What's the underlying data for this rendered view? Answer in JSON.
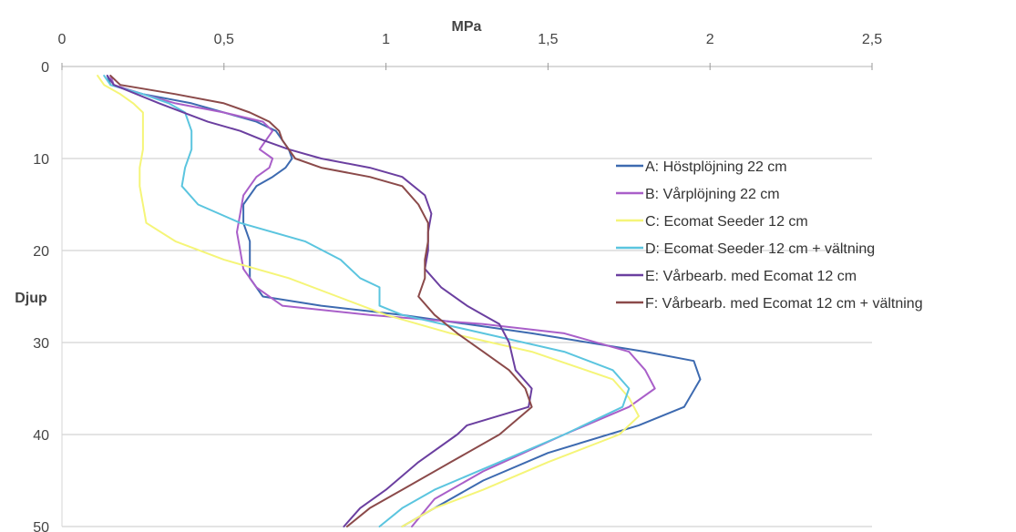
{
  "chart_data": {
    "type": "line",
    "orientation": "x-value-vs-depth (y axis inverted, x axis on top)",
    "xlabel": "MPa",
    "ylabel": "Djup",
    "xlim": [
      0,
      2.5
    ],
    "ylim": [
      0,
      50
    ],
    "x_ticks": [
      "0",
      "0,5",
      "1",
      "1,5",
      "2",
      "2,5"
    ],
    "y_ticks": [
      "0",
      "10",
      "20",
      "30",
      "40",
      "50"
    ],
    "grid": "horizontal",
    "legend_position": "right",
    "series": [
      {
        "name": "A: Höstplöjning 22 cm",
        "color": "#3d6ab0",
        "points": [
          [
            0.14,
            1
          ],
          [
            0.15,
            2
          ],
          [
            0.25,
            3
          ],
          [
            0.4,
            4
          ],
          [
            0.5,
            5
          ],
          [
            0.6,
            6
          ],
          [
            0.66,
            7
          ],
          [
            0.68,
            8
          ],
          [
            0.7,
            9
          ],
          [
            0.71,
            10
          ],
          [
            0.69,
            11
          ],
          [
            0.65,
            12
          ],
          [
            0.6,
            13
          ],
          [
            0.56,
            15
          ],
          [
            0.56,
            17
          ],
          [
            0.58,
            19
          ],
          [
            0.58,
            21
          ],
          [
            0.58,
            23
          ],
          [
            0.62,
            25
          ],
          [
            0.8,
            26
          ],
          [
            1.05,
            27
          ],
          [
            1.45,
            29
          ],
          [
            1.8,
            31
          ],
          [
            1.95,
            32
          ],
          [
            1.97,
            34
          ],
          [
            1.92,
            37
          ],
          [
            1.78,
            39
          ],
          [
            1.5,
            42
          ],
          [
            1.3,
            45
          ],
          [
            1.15,
            48
          ],
          [
            1.05,
            50
          ]
        ]
      },
      {
        "name": "B: Vårplöjning 22 cm",
        "color": "#a95fc9",
        "points": [
          [
            0.15,
            1
          ],
          [
            0.16,
            2
          ],
          [
            0.25,
            3
          ],
          [
            0.35,
            4
          ],
          [
            0.5,
            5
          ],
          [
            0.62,
            6
          ],
          [
            0.65,
            7
          ],
          [
            0.63,
            8
          ],
          [
            0.61,
            9
          ],
          [
            0.65,
            10
          ],
          [
            0.64,
            11
          ],
          [
            0.6,
            12
          ],
          [
            0.58,
            13
          ],
          [
            0.56,
            14
          ],
          [
            0.55,
            16
          ],
          [
            0.54,
            18
          ],
          [
            0.55,
            20
          ],
          [
            0.56,
            22
          ],
          [
            0.6,
            24
          ],
          [
            0.68,
            26
          ],
          [
            0.95,
            27
          ],
          [
            1.3,
            28
          ],
          [
            1.55,
            29
          ],
          [
            1.75,
            31
          ],
          [
            1.8,
            33
          ],
          [
            1.83,
            35
          ],
          [
            1.75,
            37
          ],
          [
            1.55,
            40
          ],
          [
            1.3,
            44
          ],
          [
            1.15,
            47
          ],
          [
            1.08,
            50
          ]
        ]
      },
      {
        "name": "C: Ecomat Seeder 12 cm",
        "color": "#f5f578",
        "points": [
          [
            0.11,
            1
          ],
          [
            0.13,
            2
          ],
          [
            0.18,
            3
          ],
          [
            0.22,
            4
          ],
          [
            0.25,
            5
          ],
          [
            0.25,
            7
          ],
          [
            0.25,
            9
          ],
          [
            0.24,
            11
          ],
          [
            0.24,
            13
          ],
          [
            0.25,
            15
          ],
          [
            0.26,
            17
          ],
          [
            0.35,
            19
          ],
          [
            0.5,
            21
          ],
          [
            0.7,
            23
          ],
          [
            0.85,
            25
          ],
          [
            1.0,
            27
          ],
          [
            1.2,
            29
          ],
          [
            1.45,
            31
          ],
          [
            1.7,
            34
          ],
          [
            1.75,
            36
          ],
          [
            1.78,
            38
          ],
          [
            1.72,
            40
          ],
          [
            1.5,
            43
          ],
          [
            1.3,
            46
          ],
          [
            1.15,
            48
          ],
          [
            1.05,
            50
          ]
        ]
      },
      {
        "name": "D: Ecomat Seeder 12 cm + vältning",
        "color": "#5bc5df",
        "points": [
          [
            0.13,
            1
          ],
          [
            0.15,
            2
          ],
          [
            0.25,
            3
          ],
          [
            0.33,
            4
          ],
          [
            0.38,
            5
          ],
          [
            0.4,
            7
          ],
          [
            0.4,
            9
          ],
          [
            0.38,
            11
          ],
          [
            0.37,
            13
          ],
          [
            0.42,
            15
          ],
          [
            0.55,
            17
          ],
          [
            0.75,
            19
          ],
          [
            0.86,
            21
          ],
          [
            0.92,
            23
          ],
          [
            0.98,
            24
          ],
          [
            0.98,
            26
          ],
          [
            1.05,
            27
          ],
          [
            1.3,
            29
          ],
          [
            1.55,
            31
          ],
          [
            1.7,
            33
          ],
          [
            1.75,
            35
          ],
          [
            1.73,
            37
          ],
          [
            1.55,
            40
          ],
          [
            1.35,
            43
          ],
          [
            1.15,
            46
          ],
          [
            1.05,
            48
          ],
          [
            0.98,
            50
          ]
        ]
      },
      {
        "name": "E: Vårbearb. med Ecomat 12 cm",
        "color": "#6b3fa0",
        "points": [
          [
            0.14,
            1
          ],
          [
            0.16,
            2
          ],
          [
            0.3,
            4
          ],
          [
            0.45,
            6
          ],
          [
            0.55,
            7
          ],
          [
            0.62,
            8
          ],
          [
            0.7,
            9
          ],
          [
            0.8,
            10
          ],
          [
            0.95,
            11
          ],
          [
            1.05,
            12
          ],
          [
            1.12,
            14
          ],
          [
            1.14,
            16
          ],
          [
            1.13,
            18
          ],
          [
            1.13,
            20
          ],
          [
            1.12,
            22
          ],
          [
            1.17,
            24
          ],
          [
            1.25,
            26
          ],
          [
            1.3,
            27
          ],
          [
            1.35,
            28
          ],
          [
            1.38,
            30
          ],
          [
            1.4,
            33
          ],
          [
            1.45,
            35
          ],
          [
            1.44,
            37
          ],
          [
            1.25,
            39
          ],
          [
            1.22,
            40
          ],
          [
            1.1,
            43
          ],
          [
            1.0,
            46
          ],
          [
            0.92,
            48
          ],
          [
            0.87,
            50
          ]
        ]
      },
      {
        "name": "F: Vårbearb. med Ecomat 12 cm + vältning",
        "color": "#8b4a4a",
        "points": [
          [
            0.15,
            1
          ],
          [
            0.18,
            2
          ],
          [
            0.35,
            3
          ],
          [
            0.5,
            4
          ],
          [
            0.58,
            5
          ],
          [
            0.64,
            6
          ],
          [
            0.67,
            7
          ],
          [
            0.68,
            8
          ],
          [
            0.7,
            9
          ],
          [
            0.72,
            10
          ],
          [
            0.8,
            11
          ],
          [
            0.95,
            12
          ],
          [
            1.05,
            13
          ],
          [
            1.1,
            15
          ],
          [
            1.13,
            17
          ],
          [
            1.13,
            19
          ],
          [
            1.12,
            21
          ],
          [
            1.12,
            23
          ],
          [
            1.1,
            25
          ],
          [
            1.15,
            27
          ],
          [
            1.22,
            29
          ],
          [
            1.3,
            31
          ],
          [
            1.38,
            33
          ],
          [
            1.43,
            35
          ],
          [
            1.45,
            37
          ],
          [
            1.35,
            40
          ],
          [
            1.2,
            43
          ],
          [
            1.05,
            46
          ],
          [
            0.95,
            48
          ],
          [
            0.88,
            50
          ]
        ]
      }
    ]
  }
}
